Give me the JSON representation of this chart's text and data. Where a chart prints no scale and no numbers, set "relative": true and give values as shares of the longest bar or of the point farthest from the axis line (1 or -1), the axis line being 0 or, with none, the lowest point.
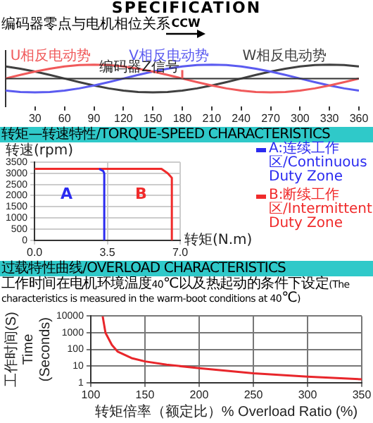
{
  "chart_data": [
    {
      "type": "line",
      "title": "SPECIFICATION",
      "subtitle": "编码器零点与电机相位关系",
      "relative": true,
      "x": [
        0,
        15,
        30,
        45,
        60,
        75,
        90,
        105,
        120,
        135,
        150,
        165,
        180,
        195,
        210,
        225,
        240,
        255,
        270,
        285,
        300,
        315,
        330,
        345,
        360
      ],
      "xlim": [
        0,
        360
      ],
      "xticks": [
        30,
        60,
        90,
        120,
        150,
        180,
        210,
        240,
        270,
        300,
        330,
        360
      ],
      "annotations": [
        "CCW",
        {
          "text": "编码器Z信号",
          "x": 180,
          "y": 0
        }
      ],
      "marker": "none",
      "series": [
        {
          "name": "U相反电动势",
          "color": "#f0595a",
          "values": [
            0,
            0.26,
            0.5,
            0.71,
            0.87,
            0.97,
            1,
            0.97,
            0.87,
            0.71,
            0.5,
            0.26,
            0,
            -0.26,
            -0.5,
            -0.71,
            -0.87,
            -0.97,
            -1,
            -0.97,
            -0.87,
            -0.71,
            -0.5,
            -0.26,
            0
          ]
        },
        {
          "name": "V相反电动势",
          "color": "#5b5bf0",
          "values": [
            -0.87,
            -0.97,
            -1,
            -0.97,
            -0.87,
            -0.71,
            -0.5,
            -0.26,
            0,
            0.26,
            0.5,
            0.71,
            0.87,
            0.97,
            1,
            0.97,
            0.87,
            0.71,
            0.5,
            0.26,
            0,
            -0.26,
            -0.5,
            -0.71,
            -0.87
          ]
        },
        {
          "name": "W相反电动势",
          "color": "#404040",
          "values": [
            0.87,
            0.71,
            0.5,
            0.26,
            0,
            -0.26,
            -0.5,
            -0.71,
            -0.87,
            -0.97,
            -1,
            -0.97,
            -0.87,
            -0.71,
            -0.5,
            -0.26,
            0,
            0.26,
            0.5,
            0.71,
            0.87,
            0.97,
            1,
            0.97,
            0.87
          ]
        }
      ]
    },
    {
      "type": "line",
      "title": "转矩—转速特性/TORQUE-SPEED CHARACTERISTICS",
      "xlabel": "转矩(N.m)",
      "ylabel": "转速(rpm)",
      "xlim": [
        0,
        7
      ],
      "xticks": [
        {
          "value": 0,
          "label": "0.0"
        },
        3.5,
        {
          "value": 7,
          "label": "7.0"
        }
      ],
      "ylim": [
        0,
        3500
      ],
      "yticks": [
        0,
        500,
        1000,
        1500,
        2000,
        2500,
        3000,
        3500
      ],
      "grid": true,
      "legend": "top right",
      "marker": "none",
      "annotations": [
        "A",
        "B"
      ],
      "series": [
        {
          "name": "A:连续工作区/Continuous Duty Zone",
          "color": "#2b2bf0",
          "x": [
            3.1,
            3.3,
            3.35,
            3.35
          ],
          "values": [
            3200,
            3100,
            3000,
            0
          ]
        },
        {
          "name": "B:断续工作区/Intermittent Duty Zone",
          "color": "#f02b2b",
          "x": [
            0,
            6.1,
            6.4,
            6.6,
            6.6
          ],
          "values": [
            3200,
            3200,
            3000,
            2800,
            0
          ]
        }
      ]
    },
    {
      "type": "line",
      "title": "过载特性曲线/OVERLOAD CHARACTERISTICS",
      "subtitle": "工作时间在电机环境温度40℃以及热起动的条件下设定(The characteristics is measured in the warm-boot conditions at 40℃)",
      "xlabel": "转矩倍率（额定比）%\nOverload Ratio (%)",
      "ylabel": "工作时间(S)\nTime (Seconds)",
      "log": "y",
      "xlim": [
        100,
        350
      ],
      "xticks": [
        100,
        150,
        200,
        250,
        300,
        350
      ],
      "ylim": [
        1,
        10000
      ],
      "yticks": [
        1,
        10,
        100,
        1000,
        10000
      ],
      "grid": true,
      "marker": "none",
      "series": [
        {
          "color": "#e8262b",
          "x": [
            111,
            113.6,
            119.5,
            124.7,
            137.7,
            150,
            170,
            200,
            250,
            300,
            350
          ],
          "values": [
            10000,
            1000,
            185,
            75,
            30,
            19,
            12,
            7.5,
            3.7,
            2.3,
            1.6
          ]
        }
      ]
    }
  ]
}
